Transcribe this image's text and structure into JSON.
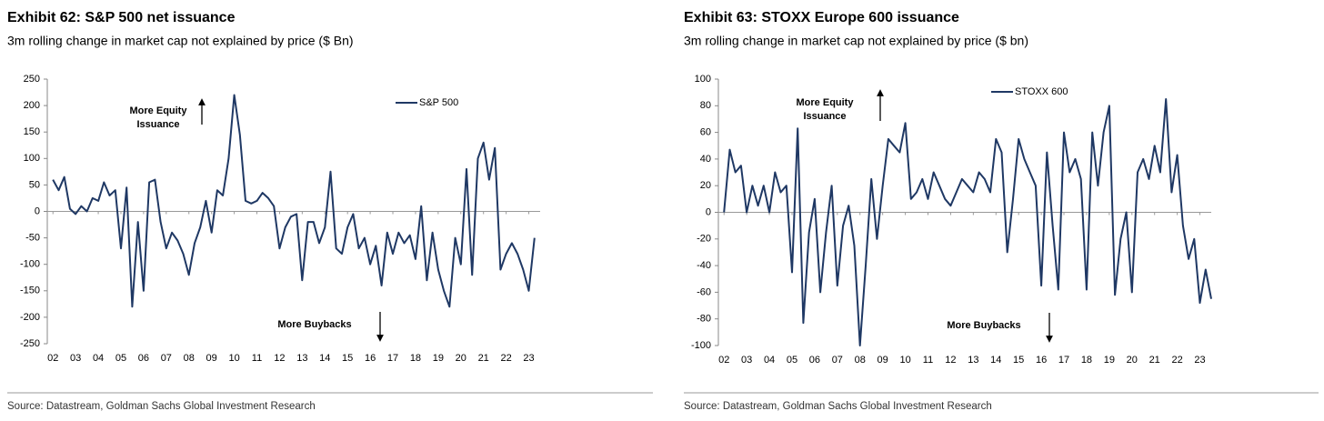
{
  "chart_data": [
    {
      "type": "line",
      "title": "Exhibit 62: S&P 500 net issuance",
      "subtitle": "3m rolling change in market cap not explained by price ($ Bn)",
      "annotations": [
        [
          "More Equity",
          "Issuance"
        ],
        [
          "More Buybacks"
        ]
      ],
      "source": "Source: Datastream, Goldman Sachs Global Investment Research",
      "x": [
        2,
        2.25,
        2.5,
        2.75,
        3,
        3.25,
        3.5,
        3.75,
        4,
        4.25,
        4.5,
        4.75,
        5,
        5.25,
        5.5,
        5.75,
        6,
        6.25,
        6.5,
        6.75,
        7,
        7.25,
        7.5,
        7.75,
        8,
        8.25,
        8.5,
        8.75,
        9,
        9.25,
        9.5,
        9.75,
        10,
        10.25,
        10.5,
        10.75,
        11,
        11.25,
        11.5,
        11.75,
        12,
        12.25,
        12.5,
        12.75,
        13,
        13.25,
        13.5,
        13.75,
        14,
        14.25,
        14.5,
        14.75,
        15,
        15.25,
        15.5,
        15.75,
        16,
        16.25,
        16.5,
        16.75,
        17,
        17.25,
        17.5,
        17.75,
        18,
        18.25,
        18.5,
        18.75,
        19,
        19.25,
        19.5,
        19.75,
        20,
        20.25,
        20.5,
        20.75,
        21,
        21.25,
        21.5,
        21.75,
        22,
        22.25,
        22.5,
        22.75,
        23,
        23.25
      ],
      "series": [
        {
          "name": "S&P 500",
          "color": "#1f3864",
          "values": [
            60,
            40,
            65,
            5,
            -5,
            10,
            0,
            25,
            20,
            55,
            30,
            40,
            -70,
            45,
            -180,
            -20,
            -150,
            55,
            60,
            -20,
            -70,
            -40,
            -55,
            -80,
            -120,
            -60,
            -30,
            20,
            -40,
            40,
            30,
            100,
            220,
            145,
            20,
            15,
            20,
            35,
            25,
            10,
            -70,
            -30,
            -10,
            -5,
            -130,
            -20,
            -20,
            -60,
            -30,
            75,
            -70,
            -80,
            -30,
            -5,
            -70,
            -50,
            -100,
            -65,
            -140,
            -40,
            -80,
            -40,
            -60,
            -45,
            -90,
            10,
            -130,
            -40,
            -110,
            -150,
            -180,
            -50,
            -100,
            80,
            -120,
            100,
            130,
            60,
            120,
            -110,
            -80,
            -60,
            -80,
            -110,
            -150,
            -50
          ]
        }
      ],
      "xlim": [
        1.75,
        23.5
      ],
      "xticks": [
        {
          "value": 2,
          "label": "02"
        },
        {
          "value": 3,
          "label": "03"
        },
        {
          "value": 4,
          "label": "04"
        },
        {
          "value": 5,
          "label": "05"
        },
        {
          "value": 6,
          "label": "06"
        },
        {
          "value": 7,
          "label": "07"
        },
        {
          "value": 8,
          "label": "08"
        },
        {
          "value": 9,
          "label": "09"
        },
        {
          "value": 10,
          "label": "10"
        },
        {
          "value": 11,
          "label": "11"
        },
        {
          "value": 12,
          "label": "12"
        },
        {
          "value": 13,
          "label": "13"
        },
        {
          "value": 14,
          "label": "14"
        },
        {
          "value": 15,
          "label": "15"
        },
        {
          "value": 16,
          "label": "16"
        },
        {
          "value": 17,
          "label": "17"
        },
        {
          "value": 18,
          "label": "18"
        },
        {
          "value": 19,
          "label": "19"
        },
        {
          "value": 20,
          "label": "20"
        },
        {
          "value": 21,
          "label": "21"
        },
        {
          "value": 22,
          "label": "22"
        },
        {
          "value": 23,
          "label": "23"
        }
      ],
      "ylim": [
        -250,
        250
      ],
      "yticks": [
        -250,
        -200,
        -150,
        -100,
        -50,
        0,
        50,
        100,
        150,
        200,
        250
      ]
    },
    {
      "type": "line",
      "title": "Exhibit 63: STOXX Europe 600 issuance",
      "subtitle": "3m rolling change in market cap not explained by price ($ bn)",
      "annotations": [
        [
          "More Equity",
          "Issuance"
        ],
        [
          "More Buybacks"
        ]
      ],
      "source": "Source: Datastream, Goldman Sachs Global Investment Research",
      "x": [
        2,
        2.25,
        2.5,
        2.75,
        3,
        3.25,
        3.5,
        3.75,
        4,
        4.25,
        4.5,
        4.75,
        5,
        5.25,
        5.5,
        5.75,
        6,
        6.25,
        6.5,
        6.75,
        7,
        7.25,
        7.5,
        7.75,
        8,
        8.25,
        8.5,
        8.75,
        9,
        9.25,
        9.5,
        9.75,
        10,
        10.25,
        10.5,
        10.75,
        11,
        11.25,
        11.5,
        11.75,
        12,
        12.25,
        12.5,
        12.75,
        13,
        13.25,
        13.5,
        13.75,
        14,
        14.25,
        14.5,
        14.75,
        15,
        15.25,
        15.5,
        15.75,
        16,
        16.25,
        16.5,
        16.75,
        17,
        17.25,
        17.5,
        17.75,
        18,
        18.25,
        18.5,
        18.75,
        19,
        19.25,
        19.5,
        19.75,
        20,
        20.25,
        20.5,
        20.75,
        21,
        21.25,
        21.5,
        21.75,
        22,
        22.25,
        22.5,
        22.75,
        23,
        23.25,
        23.5
      ],
      "series": [
        {
          "name": "STOXX 600",
          "color": "#1f3864",
          "values": [
            0,
            47,
            30,
            35,
            0,
            20,
            5,
            20,
            0,
            30,
            15,
            20,
            -45,
            63,
            -83,
            -15,
            10,
            -60,
            -15,
            20,
            -55,
            -10,
            5,
            -25,
            -100,
            -40,
            25,
            -20,
            20,
            55,
            50,
            45,
            67,
            10,
            15,
            25,
            10,
            30,
            20,
            10,
            5,
            15,
            25,
            20,
            15,
            30,
            25,
            15,
            55,
            45,
            -30,
            10,
            55,
            40,
            30,
            20,
            -55,
            45,
            -10,
            -58,
            60,
            30,
            40,
            25,
            -58,
            60,
            20,
            60,
            80,
            -62,
            -20,
            0,
            -60,
            30,
            40,
            25,
            50,
            30,
            85,
            15,
            43,
            -10,
            -35,
            -20,
            -68,
            -43,
            -65
          ]
        }
      ],
      "xlim": [
        1.75,
        23.5
      ],
      "xticks": [
        {
          "value": 2,
          "label": "02"
        },
        {
          "value": 3,
          "label": "03"
        },
        {
          "value": 4,
          "label": "04"
        },
        {
          "value": 5,
          "label": "05"
        },
        {
          "value": 6,
          "label": "06"
        },
        {
          "value": 7,
          "label": "07"
        },
        {
          "value": 8,
          "label": "08"
        },
        {
          "value": 9,
          "label": "09"
        },
        {
          "value": 10,
          "label": "10"
        },
        {
          "value": 11,
          "label": "11"
        },
        {
          "value": 12,
          "label": "12"
        },
        {
          "value": 13,
          "label": "13"
        },
        {
          "value": 14,
          "label": "14"
        },
        {
          "value": 15,
          "label": "15"
        },
        {
          "value": 16,
          "label": "16"
        },
        {
          "value": 17,
          "label": "17"
        },
        {
          "value": 18,
          "label": "18"
        },
        {
          "value": 19,
          "label": "19"
        },
        {
          "value": 20,
          "label": "20"
        },
        {
          "value": 21,
          "label": "21"
        },
        {
          "value": 22,
          "label": "22"
        },
        {
          "value": 23,
          "label": "23"
        }
      ],
      "ylim": [
        -100,
        100
      ],
      "yticks": [
        -100,
        -80,
        -60,
        -40,
        -20,
        0,
        20,
        40,
        60,
        80,
        100
      ]
    }
  ]
}
